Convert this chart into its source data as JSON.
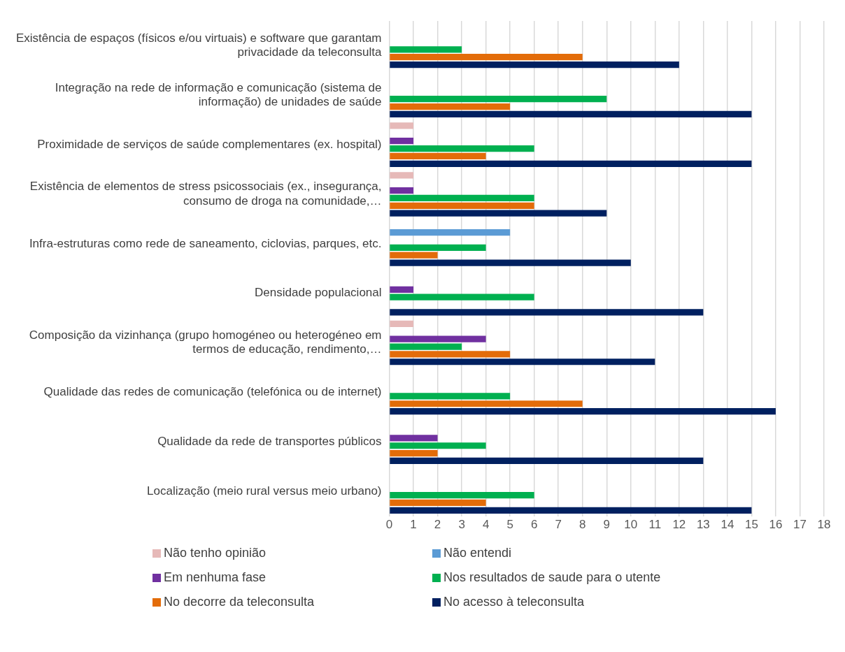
{
  "chart_data": {
    "type": "bar",
    "orientation": "horizontal",
    "categories": [
      "Existência de espaços (físicos e/ou virtuais) e software que garantam privacidade da teleconsulta",
      "Integração na rede de informação e comunicação (sistema de informação) de unidades de saúde",
      "Proximidade de serviços de saúde complementares (ex. hospital)",
      "Existência de elementos de stress psicossociais (ex., insegurança, consumo de droga na comunidade,…",
      "Infra-estruturas como rede de saneamento, ciclovias, parques, etc.",
      "Densidade populacional",
      "Composição da vizinhança (grupo homogéneo ou heterogéneo em termos de educação, rendimento,…",
      "Qualidade das redes de comunicação (telefónica ou de internet)",
      "Qualidade da rede de transportes públicos",
      "Localização (meio rural versus meio urbano)"
    ],
    "series": [
      {
        "name": "Não tenho opinião",
        "color": "#e6b9b8",
        "values": [
          null,
          null,
          1,
          1,
          null,
          null,
          1,
          null,
          null,
          null
        ]
      },
      {
        "name": "Não entendi",
        "color": "#5b9bd5",
        "values": [
          null,
          null,
          null,
          null,
          5,
          null,
          null,
          null,
          null,
          null
        ]
      },
      {
        "name": "Em nenhuma fase",
        "color": "#7030a0",
        "values": [
          null,
          null,
          1,
          1,
          null,
          1,
          4,
          null,
          2,
          null
        ]
      },
      {
        "name": "Nos resultados de saude para o utente",
        "color": "#00b050",
        "values": [
          3,
          9,
          6,
          6,
          4,
          6,
          3,
          5,
          4,
          6
        ]
      },
      {
        "name": "No decorre da teleconsulta",
        "color": "#e36c09",
        "values": [
          8,
          5,
          4,
          6,
          2,
          null,
          5,
          8,
          2,
          4
        ]
      },
      {
        "name": "No acesso à teleconsulta",
        "color": "#002060",
        "values": [
          12,
          15,
          15,
          9,
          10,
          13,
          11,
          16,
          13,
          15
        ]
      }
    ],
    "xlim": [
      0,
      18
    ],
    "xticks": [
      0,
      1,
      2,
      3,
      4,
      5,
      6,
      7,
      8,
      9,
      10,
      11,
      12,
      13,
      14,
      15,
      16,
      17,
      18
    ],
    "grid": "x",
    "legend": "bottom"
  }
}
